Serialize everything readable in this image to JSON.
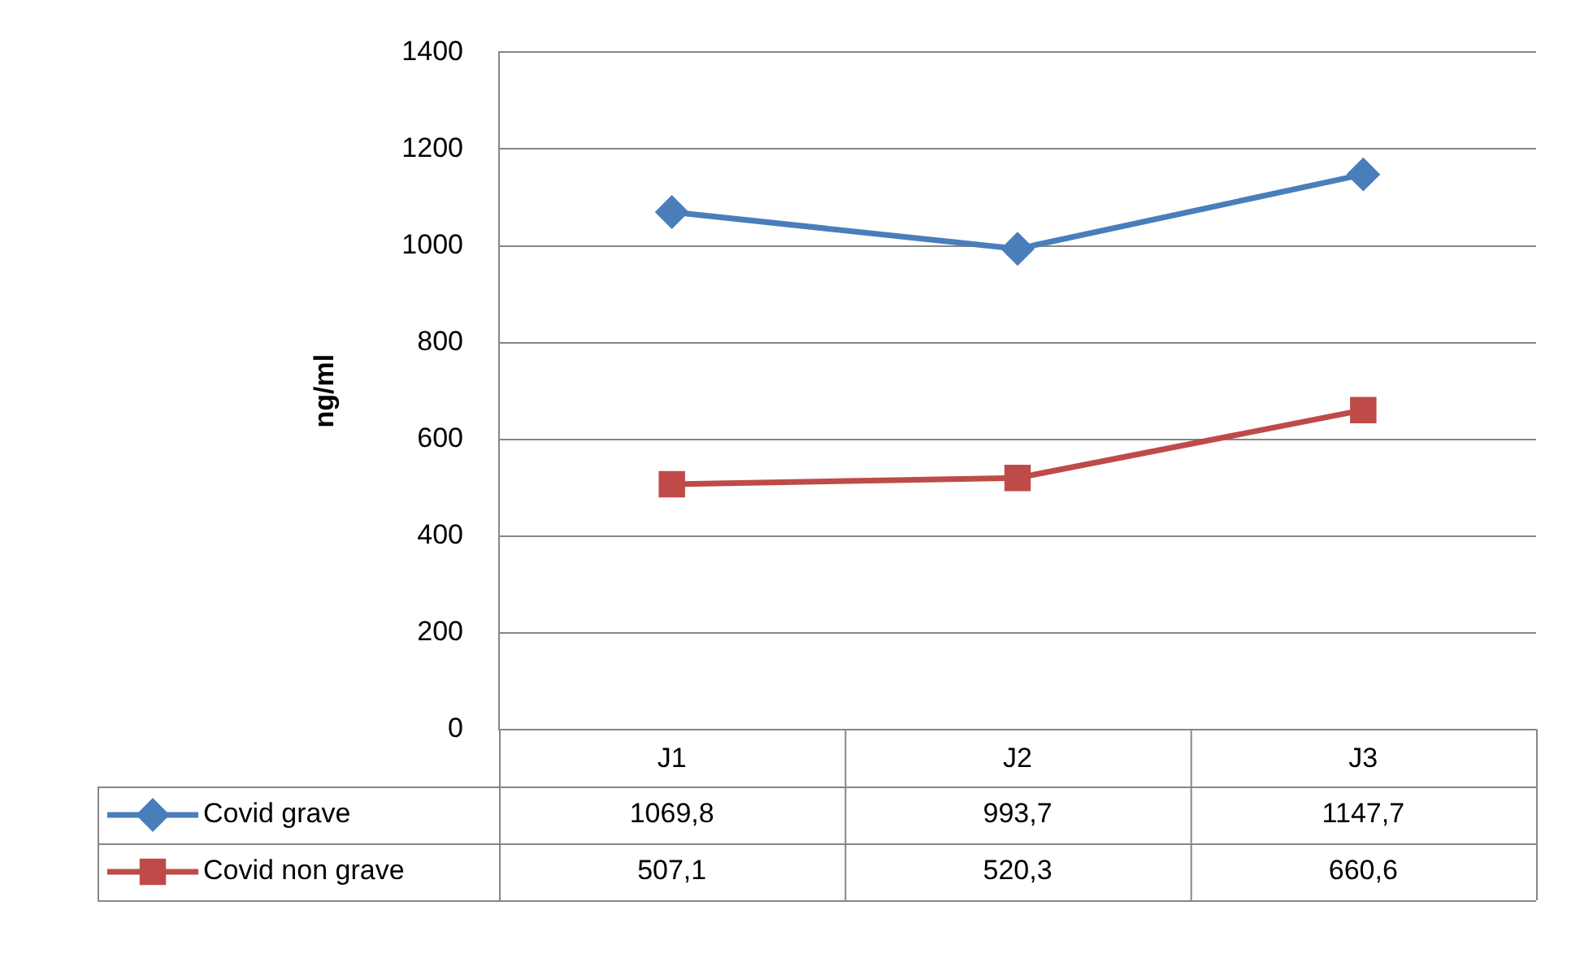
{
  "chart_data": {
    "type": "line",
    "ylabel": "ng/ml",
    "categories": [
      "J1",
      "J2",
      "J3"
    ],
    "series": [
      {
        "name": "Covid grave",
        "color": "#4a7ebb",
        "marker": "diamond",
        "values": [
          1069.8,
          993.7,
          1147.7
        ],
        "value_labels": [
          "1069,8",
          "993,7",
          "1147,7"
        ]
      },
      {
        "name": "Covid non grave",
        "color": "#be4b48",
        "marker": "square",
        "values": [
          507.1,
          520.3,
          660.6
        ],
        "value_labels": [
          "507,1",
          "520,3",
          "660,6"
        ]
      }
    ],
    "ylim": [
      0,
      1400
    ],
    "yticks": [
      0,
      200,
      400,
      600,
      800,
      1000,
      1200,
      1400
    ],
    "grid": "y",
    "legend": "bottom"
  }
}
